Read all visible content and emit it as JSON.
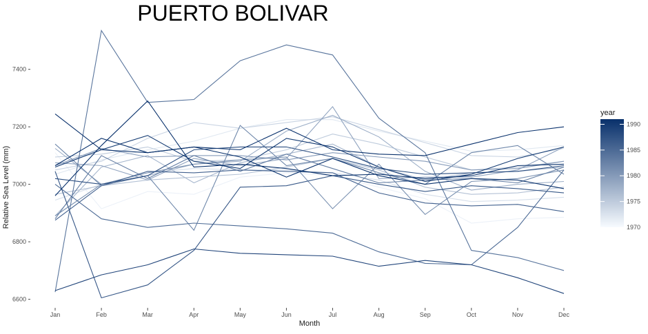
{
  "chart_data": {
    "type": "line",
    "title": "PUERTO BOLIVAR",
    "xlabel": "Month",
    "ylabel": "Relative Sea Level (mm)",
    "categories": [
      "Jan",
      "Feb",
      "Mar",
      "Apr",
      "May",
      "Jun",
      "Jul",
      "Aug",
      "Sep",
      "Oct",
      "Nov",
      "Dec"
    ],
    "ylim": [
      6575,
      7555
    ],
    "yticks": [
      6600,
      6800,
      7000,
      7200,
      7400
    ],
    "grid": false,
    "legend": {
      "title": "year",
      "position": "right",
      "range": [
        1970,
        1991
      ],
      "ticks": [
        1970,
        1975,
        1980,
        1985,
        1990
      ],
      "color_low": "#f7fbff",
      "color_high": "#08306b"
    },
    "series": [
      {
        "year": 1971,
        "values": [
          7110,
          6915,
          6975,
          6965,
          7025,
          7040,
          7030,
          6990,
          6950,
          6865,
          6880,
          6885
        ]
      },
      {
        "year": 1972,
        "values": [
          7035,
          7085,
          7120,
          7150,
          7195,
          7225,
          7225,
          7185,
          7150,
          7115,
          7120,
          7135
        ]
      },
      {
        "year": 1973,
        "values": [
          6945,
          7000,
          7040,
          7055,
          7050,
          7050,
          7040,
          7015,
          6965,
          6940,
          6945,
          6955
        ]
      },
      {
        "year": 1974,
        "values": [
          7050,
          7080,
          7160,
          7215,
          7195,
          7215,
          7235,
          7190,
          7145,
          7100,
          7095,
          7125
        ]
      },
      {
        "year": 1975,
        "values": [
          7095,
          7105,
          7130,
          7080,
          7085,
          7120,
          7175,
          7140,
          7095,
          7050,
          7060,
          7080
        ]
      },
      {
        "year": 1976,
        "values": [
          6965,
          6995,
          7015,
          7025,
          7035,
          7060,
          7090,
          7050,
          6990,
          6965,
          6970,
          6990
        ]
      },
      {
        "year": 1977,
        "values": [
          6890,
          7060,
          7100,
          7005,
          7075,
          7105,
          7140,
          7060,
          7015,
          7040,
          7045,
          7060
        ]
      },
      {
        "year": 1978,
        "values": [
          7125,
          7000,
          7030,
          7070,
          7080,
          7185,
          7240,
          7165,
          7045,
          6980,
          7000,
          7010
        ]
      },
      {
        "year": 1979,
        "values": [
          7075,
          7065,
          7015,
          7090,
          7065,
          7090,
          7270,
          7020,
          7025,
          7025,
          7050,
          7130
        ]
      },
      {
        "year": 1980,
        "values": [
          7065,
          7125,
          7095,
          7100,
          7100,
          7085,
          7110,
          7095,
          7080,
          7050,
          7055,
          7080
        ]
      },
      {
        "year": 1981,
        "values": [
          6890,
          7000,
          7040,
          7070,
          7085,
          7095,
          6915,
          7070,
          6895,
          7010,
          7020,
          7050
        ]
      },
      {
        "year": 1982,
        "values": [
          7140,
          6995,
          7030,
          6840,
          7205,
          7065,
          7090,
          7040,
          7000,
          7110,
          7135,
          7035
        ]
      },
      {
        "year": 1983,
        "values": [
          6880,
          7100,
          7020,
          7100,
          7045,
          7105,
          7055,
          7005,
          7015,
          7020,
          7005,
          7060
        ]
      },
      {
        "year": 1984,
        "values": [
          6625,
          7535,
          7285,
          7295,
          7430,
          7485,
          7450,
          7230,
          7110,
          6770,
          6745,
          6700
        ]
      },
      {
        "year": 1985,
        "values": [
          7000,
          6880,
          6850,
          6865,
          6855,
          6845,
          6830,
          6765,
          6725,
          6720,
          6850,
          7050
        ]
      },
      {
        "year": 1986,
        "values": [
          6875,
          6995,
          7045,
          7040,
          7050,
          7045,
          7040,
          6970,
          6935,
          6925,
          6930,
          6905
        ]
      },
      {
        "year": 1987,
        "values": [
          7045,
          6605,
          6650,
          6770,
          6990,
          6995,
          7030,
          7000,
          6975,
          6995,
          6985,
          6970
        ]
      },
      {
        "year": 1988,
        "values": [
          7020,
          7000,
          7030,
          7120,
          7130,
          7130,
          7095,
          7055,
          7035,
          7040,
          7045,
          7065
        ]
      },
      {
        "year": 1989,
        "values": [
          6630,
          6685,
          6720,
          6775,
          6760,
          6755,
          6750,
          6715,
          6735,
          6720,
          6675,
          6620
        ]
      },
      {
        "year": 1990,
        "values": [
          7060,
          7120,
          7170,
          7080,
          7055,
          7160,
          7130,
          7060,
          7010,
          7035,
          7090,
          7130
        ]
      },
      {
        "year": 1991,
        "values": [
          7245,
          7120,
          7110,
          7130,
          7095,
          7025,
          7090,
          7030,
          7000,
          7020,
          7015,
          6985
        ]
      },
      {
        "year": 1991,
        "values": [
          6960,
          7135,
          7290,
          7060,
          7070,
          7055,
          7030,
          7035,
          7020,
          7030,
          7065,
          7070
        ]
      },
      {
        "year": 1991,
        "values": [
          7065,
          7160,
          7110,
          7130,
          7120,
          7195,
          7120,
          7105,
          7100,
          7140,
          7180,
          7200
        ]
      }
    ]
  }
}
